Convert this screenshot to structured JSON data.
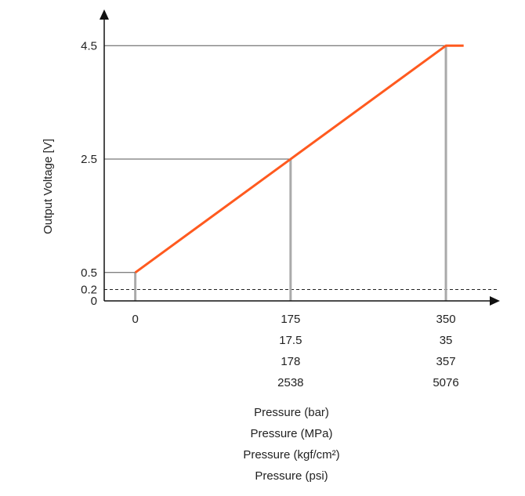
{
  "chart_data": {
    "type": "line",
    "title": "",
    "ylabel": "Output Voltage [V]",
    "xlabels": [
      "Pressure (bar)",
      "Pressure (MPa)",
      "Pressure (kgf/cm²)",
      "Pressure (psi)"
    ],
    "x_unit_basis": "bar",
    "xlim": [
      -35,
      410
    ],
    "ylim": [
      0,
      5.25
    ],
    "y_ticks": [
      {
        "value": 0,
        "label": "0"
      },
      {
        "value": 0.2,
        "label": "0.2"
      },
      {
        "value": 0.5,
        "label": "0.5"
      },
      {
        "value": 2.5,
        "label": "2.5"
      },
      {
        "value": 4.5,
        "label": "4.5"
      }
    ],
    "x_ticks": [
      {
        "value": 0,
        "labels": [
          "0"
        ]
      },
      {
        "value": 175,
        "labels": [
          "175",
          "17.5",
          "178",
          "2538"
        ]
      },
      {
        "value": 350,
        "labels": [
          "350",
          "35",
          "357",
          "5076"
        ]
      }
    ],
    "series": [
      {
        "name": "Output Voltage",
        "color": "#ff5a1f",
        "x": [
          0,
          175,
          350,
          370
        ],
        "y": [
          0.5,
          2.5,
          4.5,
          4.5
        ]
      }
    ],
    "guides": [
      {
        "x": 0,
        "y": 0.5
      },
      {
        "x": 175,
        "y": 2.5
      },
      {
        "x": 350,
        "y": 4.5
      }
    ],
    "threshold": {
      "y": 0.2,
      "style": "dashed"
    },
    "colors": {
      "line": "#ff5a1f",
      "axis": "#111111",
      "guide": "#555555",
      "guide_light": "#aaaaaa"
    }
  }
}
